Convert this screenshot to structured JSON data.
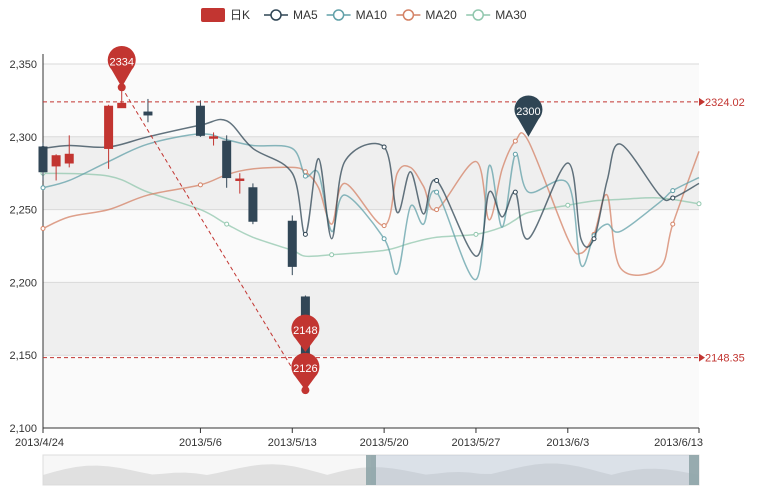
{
  "chart_data": {
    "type": "candlestick",
    "legend": {
      "placement": "top-center",
      "items": [
        {
          "label": "日K",
          "color": "#c23531",
          "kind": "box"
        },
        {
          "label": "MA5",
          "color": "#2f4554",
          "kind": "line"
        },
        {
          "label": "MA10",
          "color": "#61a0a8",
          "kind": "line"
        },
        {
          "label": "MA20",
          "color": "#d48265",
          "kind": "line"
        },
        {
          "label": "MA30",
          "color": "#91c7ae",
          "kind": "line"
        }
      ]
    },
    "y_axis": {
      "min": 2100,
      "max": 2350,
      "ticks": [
        2100,
        2150,
        2200,
        2250,
        2300,
        2350
      ],
      "tick_labels": [
        "2,100",
        "2,150",
        "2,200",
        "2,250",
        "2,300",
        "2,350"
      ],
      "split_area": true
    },
    "x_axis": {
      "domain_start": "2013/4/24",
      "domain_end": "2013/6/13",
      "tick_labels": [
        "2013/4/24",
        "2013/5/6",
        "2013/5/13",
        "2013/5/20",
        "2013/5/27",
        "2013/6/3",
        "2013/6/13"
      ],
      "tick_dates": [
        "2013/4/24",
        "2013/5/6",
        "2013/5/13",
        "2013/5/20",
        "2013/5/27",
        "2013/6/3",
        "2013/6/13"
      ]
    },
    "candles": [
      {
        "date": "2013/4/24",
        "open": 2293,
        "close": 2276,
        "low": 2270,
        "high": 2296
      },
      {
        "date": "2013/4/25",
        "open": 2280,
        "close": 2287,
        "low": 2270,
        "high": 2288
      },
      {
        "date": "2013/4/26",
        "open": 2282,
        "close": 2288,
        "low": 2279,
        "high": 2301
      },
      {
        "date": "2013/4/29",
        "open": 2292,
        "close": 2321,
        "low": 2278,
        "high": 2322
      },
      {
        "date": "2013/4/30",
        "open": 2320,
        "close": 2323,
        "low": 2320,
        "high": 2334
      },
      {
        "date": "2013/5/2",
        "open": 2317,
        "close": 2315,
        "low": 2310,
        "high": 2326
      },
      {
        "date": "2013/5/6",
        "open": 2321,
        "close": 2301,
        "low": 2300,
        "high": 2325
      },
      {
        "date": "2013/5/7",
        "open": 2299,
        "close": 2300,
        "low": 2294,
        "high": 2303
      },
      {
        "date": "2013/5/8",
        "open": 2297,
        "close": 2272,
        "low": 2265,
        "high": 2301
      },
      {
        "date": "2013/5/9",
        "open": 2270,
        "close": 2271,
        "low": 2261,
        "high": 2275
      },
      {
        "date": "2013/5/10",
        "open": 2265,
        "close": 2242,
        "low": 2240,
        "high": 2268
      },
      {
        "date": "2013/5/13",
        "open": 2242,
        "close": 2211,
        "low": 2205,
        "high": 2246
      },
      {
        "date": "2013/5/14",
        "open": 2190,
        "close": 2148,
        "low": 2126,
        "high": 2191
      }
    ],
    "ma5": {
      "dates": [
        "2013/4/24",
        "2013/4/26",
        "2013/4/29",
        "2013/5/2",
        "2013/5/6",
        "2013/5/8",
        "2013/5/10",
        "2013/5/13",
        "2013/5/14",
        "2013/5/15",
        "2013/5/16",
        "2013/5/17",
        "2013/5/20",
        "2013/5/21",
        "2013/5/22",
        "2013/5/23",
        "2013/5/24",
        "2013/5/27",
        "2013/5/28",
        "2013/5/29",
        "2013/5/30",
        "2013/5/31",
        "2013/6/3",
        "2013/6/4",
        "2013/6/5",
        "2013/6/6",
        "2013/6/7",
        "2013/6/10",
        "2013/6/11",
        "2013/6/13"
      ],
      "values": [
        2292,
        2294,
        2293,
        2300,
        2308,
        2311,
        2292,
        2275,
        2233,
        2285,
        2230,
        2283,
        2293,
        2248,
        2276,
        2247,
        2270,
        2218,
        2262,
        2245,
        2262,
        2230,
        2282,
        2230,
        2230,
        2270,
        2295,
        2260,
        2258,
        2268
      ]
    },
    "ma10": {
      "dates": [
        "2013/4/24",
        "2013/4/26",
        "2013/4/29",
        "2013/5/2",
        "2013/5/6",
        "2013/5/8",
        "2013/5/10",
        "2013/5/13",
        "2013/5/14",
        "2013/5/15",
        "2013/5/16",
        "2013/5/17",
        "2013/5/20",
        "2013/5/21",
        "2013/5/22",
        "2013/5/23",
        "2013/5/24",
        "2013/5/27",
        "2013/5/28",
        "2013/5/29",
        "2013/5/30",
        "2013/5/31",
        "2013/6/3",
        "2013/6/4",
        "2013/6/5",
        "2013/6/6",
        "2013/6/7",
        "2013/6/10",
        "2013/6/11",
        "2013/6/13"
      ],
      "values": [
        2265,
        2270,
        2283,
        2295,
        2302,
        2298,
        2294,
        2292,
        2273,
        2275,
        2235,
        2260,
        2230,
        2206,
        2252,
        2240,
        2262,
        2202,
        2280,
        2238,
        2288,
        2262,
        2268,
        2212,
        2232,
        2240,
        2235,
        2255,
        2263,
        2272
      ]
    },
    "ma20": {
      "dates": [
        "2013/4/24",
        "2013/4/26",
        "2013/4/29",
        "2013/5/2",
        "2013/5/6",
        "2013/5/8",
        "2013/5/10",
        "2013/5/13",
        "2013/5/14",
        "2013/5/15",
        "2013/5/16",
        "2013/5/17",
        "2013/5/20",
        "2013/5/21",
        "2013/5/22",
        "2013/5/23",
        "2013/5/24",
        "2013/5/27",
        "2013/5/28",
        "2013/5/29",
        "2013/5/30",
        "2013/5/31",
        "2013/6/3",
        "2013/6/4",
        "2013/6/5",
        "2013/6/6",
        "2013/6/7",
        "2013/6/10",
        "2013/6/11",
        "2013/6/13"
      ],
      "values": [
        2237,
        2245,
        2250,
        2260,
        2267,
        2274,
        2278,
        2279,
        2276,
        2265,
        2240,
        2268,
        2239,
        2275,
        2279,
        2266,
        2250,
        2283,
        2243,
        2278,
        2297,
        2297,
        2230,
        2220,
        2233,
        2260,
        2210,
        2210,
        2240,
        2290
      ]
    },
    "ma30": {
      "dates": [
        "2013/4/24",
        "2013/4/29",
        "2013/5/2",
        "2013/5/6",
        "2013/5/8",
        "2013/5/10",
        "2013/5/13",
        "2013/5/14",
        "2013/5/16",
        "2013/5/20",
        "2013/5/22",
        "2013/5/24",
        "2013/5/27",
        "2013/5/29",
        "2013/5/30",
        "2013/5/31",
        "2013/6/3",
        "2013/6/5",
        "2013/6/7",
        "2013/6/10",
        "2013/6/13"
      ],
      "values": [
        2275,
        2273,
        2262,
        2250,
        2240,
        2231,
        2222,
        2218,
        2219,
        2222,
        2227,
        2231,
        2233,
        2238,
        2243,
        2248,
        2253,
        2256,
        2257,
        2258,
        2254
      ]
    },
    "mark_points": [
      {
        "label": "2334",
        "date": "2013/4/30",
        "value": 2334,
        "color": "#c23531"
      },
      {
        "label": "2148",
        "date": "2013/5/14",
        "value": 2148,
        "color": "#c23531"
      },
      {
        "label": "2126",
        "date": "2013/5/14",
        "value": 2126,
        "color": "#c23531"
      },
      {
        "label": "2300",
        "date": "2013/5/31",
        "value": 2300,
        "color": "#2f4554"
      }
    ],
    "mark_lines": [
      {
        "label": "2324.02",
        "value": 2324.02
      },
      {
        "label": "2148.35",
        "value": 2148.35
      }
    ],
    "diagonal_line": {
      "from_date": "2013/4/30",
      "from_value": 2334,
      "to_date": "2013/5/14",
      "to_value": 2126
    },
    "data_zoom": {
      "start_fraction": 0.5,
      "end_fraction": 1.0
    },
    "colors": {
      "up": "#c23531",
      "down": "#314656",
      "grid": "#d9d9d9",
      "split_area": "#efefef",
      "axis": "#333333",
      "mark_line": "#c23531"
    }
  }
}
